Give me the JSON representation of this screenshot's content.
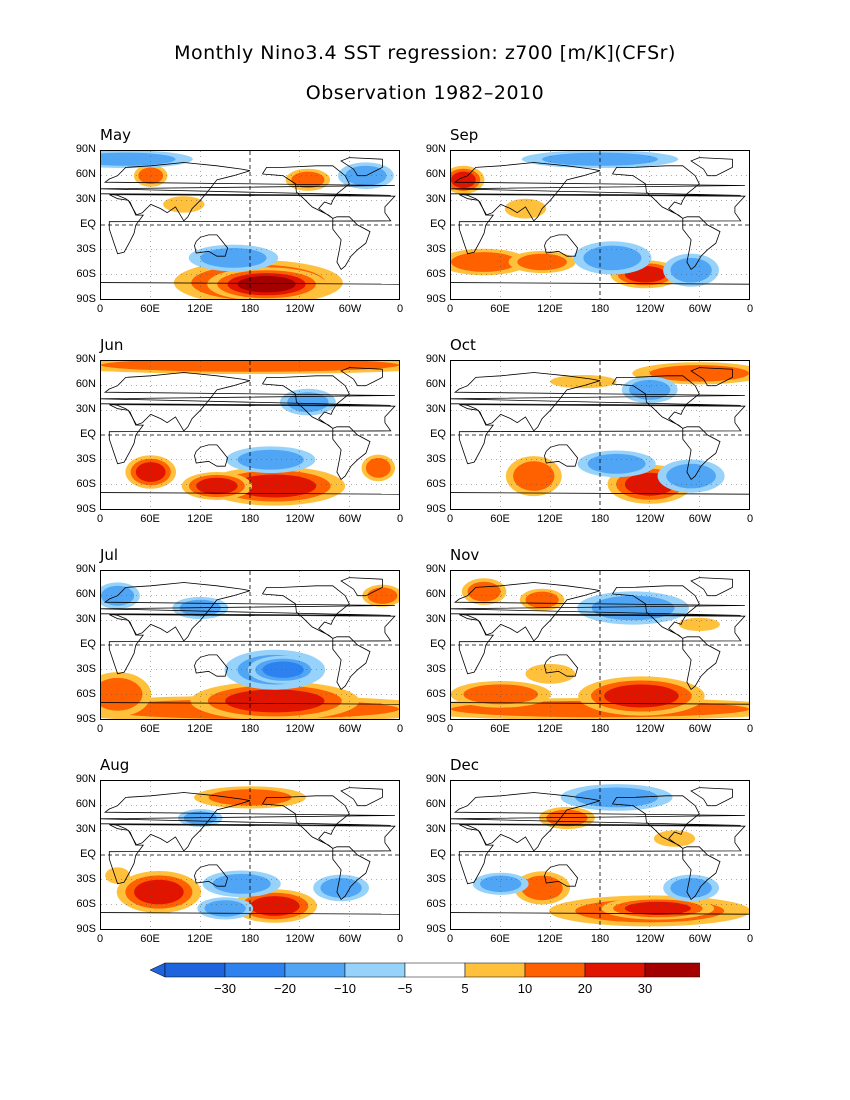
{
  "title": "Monthly Nino3.4 SST regression: z700 [m/K](CFSr)",
  "subtitle": "Observation 1982–2010",
  "lat_labels": [
    "90N",
    "60N",
    "30N",
    "EQ",
    "30S",
    "60S",
    "90S"
  ],
  "lon_labels": [
    "0",
    "60E",
    "120E",
    "180",
    "120W",
    "60W",
    "0"
  ],
  "panels": [
    {
      "month": "May",
      "blobs": [
        {
          "lon": 190,
          "lat": -70,
          "rx": 60,
          "ry": 16,
          "level": 20
        },
        {
          "lon": 200,
          "lat": -72,
          "rx": 35,
          "ry": 10,
          "level": 30
        },
        {
          "lon": 160,
          "lat": -40,
          "rx": 40,
          "ry": 12,
          "level": -10
        },
        {
          "lon": 60,
          "lat": 60,
          "rx": 15,
          "ry": 10,
          "level": 10
        },
        {
          "lon": 250,
          "lat": 55,
          "rx": 20,
          "ry": 10,
          "level": 10
        },
        {
          "lon": 100,
          "lat": 25,
          "rx": 25,
          "ry": 10,
          "level": 5
        },
        {
          "lon": 320,
          "lat": 60,
          "rx": 25,
          "ry": 12,
          "level": -10
        },
        {
          "lon": 30,
          "lat": 80,
          "rx": 60,
          "ry": 8,
          "level": -10
        }
      ]
    },
    {
      "month": "Sep",
      "blobs": [
        {
          "lon": 40,
          "lat": -45,
          "rx": 40,
          "ry": 12,
          "level": 10
        },
        {
          "lon": 110,
          "lat": -45,
          "rx": 30,
          "ry": 10,
          "level": 10
        },
        {
          "lon": 235,
          "lat": -60,
          "rx": 25,
          "ry": 10,
          "level": 20
        },
        {
          "lon": 195,
          "lat": -40,
          "rx": 35,
          "ry": 15,
          "level": -10
        },
        {
          "lon": 290,
          "lat": -55,
          "rx": 25,
          "ry": 15,
          "level": -10
        },
        {
          "lon": 15,
          "lat": 55,
          "rx": 15,
          "ry": 10,
          "level": 20
        },
        {
          "lon": 180,
          "lat": 80,
          "rx": 70,
          "ry": 8,
          "level": -10
        },
        {
          "lon": 90,
          "lat": 20,
          "rx": 25,
          "ry": 12,
          "level": 5
        }
      ]
    },
    {
      "month": "Jun",
      "blobs": [
        {
          "lon": 180,
          "lat": 85,
          "rx": 180,
          "ry": 8,
          "level": 10
        },
        {
          "lon": 210,
          "lat": -62,
          "rx": 50,
          "ry": 14,
          "level": 20
        },
        {
          "lon": 140,
          "lat": -62,
          "rx": 25,
          "ry": 10,
          "level": 20
        },
        {
          "lon": 60,
          "lat": -45,
          "rx": 18,
          "ry": 12,
          "level": 20
        },
        {
          "lon": 205,
          "lat": -30,
          "rx": 40,
          "ry": 12,
          "level": -10
        },
        {
          "lon": 335,
          "lat": -40,
          "rx": 15,
          "ry": 12,
          "level": 10
        },
        {
          "lon": 250,
          "lat": 40,
          "rx": 25,
          "ry": 12,
          "level": -10
        }
      ]
    },
    {
      "month": "Oct",
      "blobs": [
        {
          "lon": 240,
          "lat": -60,
          "rx": 30,
          "ry": 14,
          "level": 20
        },
        {
          "lon": 100,
          "lat": -50,
          "rx": 25,
          "ry": 18,
          "level": 10
        },
        {
          "lon": 200,
          "lat": -35,
          "rx": 35,
          "ry": 12,
          "level": -10
        },
        {
          "lon": 290,
          "lat": -50,
          "rx": 30,
          "ry": 15,
          "level": -10
        },
        {
          "lon": 300,
          "lat": 75,
          "rx": 60,
          "ry": 10,
          "level": 10
        },
        {
          "lon": 160,
          "lat": 65,
          "rx": 40,
          "ry": 8,
          "level": 5
        },
        {
          "lon": 240,
          "lat": 55,
          "rx": 25,
          "ry": 12,
          "level": -10
        }
      ]
    },
    {
      "month": "Jul",
      "blobs": [
        {
          "lon": 180,
          "lat": -78,
          "rx": 180,
          "ry": 12,
          "level": 10
        },
        {
          "lon": 210,
          "lat": -68,
          "rx": 60,
          "ry": 14,
          "level": 20
        },
        {
          "lon": 20,
          "lat": -60,
          "rx": 30,
          "ry": 20,
          "level": 10
        },
        {
          "lon": 210,
          "lat": -30,
          "rx": 45,
          "ry": 18,
          "level": -10
        },
        {
          "lon": 220,
          "lat": -30,
          "rx": 25,
          "ry": 10,
          "level": -20
        },
        {
          "lon": 120,
          "lat": 45,
          "rx": 25,
          "ry": 10,
          "level": -10
        },
        {
          "lon": 20,
          "lat": 60,
          "rx": 20,
          "ry": 12,
          "level": -10
        },
        {
          "lon": 340,
          "lat": 60,
          "rx": 18,
          "ry": 10,
          "level": 10
        }
      ]
    },
    {
      "month": "Nov",
      "blobs": [
        {
          "lon": 180,
          "lat": -78,
          "rx": 180,
          "ry": 10,
          "level": 10
        },
        {
          "lon": 230,
          "lat": -62,
          "rx": 45,
          "ry": 14,
          "level": 20
        },
        {
          "lon": 60,
          "lat": -60,
          "rx": 45,
          "ry": 12,
          "level": 10
        },
        {
          "lon": 120,
          "lat": -35,
          "rx": 30,
          "ry": 12,
          "level": 5
        },
        {
          "lon": 220,
          "lat": 45,
          "rx": 50,
          "ry": 15,
          "level": -10
        },
        {
          "lon": 40,
          "lat": 65,
          "rx": 20,
          "ry": 12,
          "level": 10
        },
        {
          "lon": 110,
          "lat": 55,
          "rx": 20,
          "ry": 10,
          "level": 10
        },
        {
          "lon": 300,
          "lat": 25,
          "rx": 25,
          "ry": 8,
          "level": 5
        }
      ]
    },
    {
      "month": "Aug",
      "blobs": [
        {
          "lon": 70,
          "lat": -45,
          "rx": 30,
          "ry": 15,
          "level": 20
        },
        {
          "lon": 210,
          "lat": -62,
          "rx": 30,
          "ry": 12,
          "level": 20
        },
        {
          "lon": 170,
          "lat": -35,
          "rx": 35,
          "ry": 12,
          "level": -10
        },
        {
          "lon": 150,
          "lat": -65,
          "rx": 25,
          "ry": 10,
          "level": -10
        },
        {
          "lon": 290,
          "lat": -40,
          "rx": 25,
          "ry": 12,
          "level": -10
        },
        {
          "lon": 180,
          "lat": 70,
          "rx": 50,
          "ry": 10,
          "level": 10
        },
        {
          "lon": 120,
          "lat": 45,
          "rx": 20,
          "ry": 8,
          "level": -10
        },
        {
          "lon": 20,
          "lat": -25,
          "rx": 15,
          "ry": 10,
          "level": 5
        }
      ]
    },
    {
      "month": "Dec",
      "blobs": [
        {
          "lon": 240,
          "lat": -68,
          "rx": 90,
          "ry": 14,
          "level": 10
        },
        {
          "lon": 250,
          "lat": -65,
          "rx": 40,
          "ry": 8,
          "level": 20
        },
        {
          "lon": 110,
          "lat": -40,
          "rx": 25,
          "ry": 15,
          "level": 10
        },
        {
          "lon": 140,
          "lat": 45,
          "rx": 25,
          "ry": 10,
          "level": 10
        },
        {
          "lon": 200,
          "lat": 70,
          "rx": 50,
          "ry": 12,
          "level": -10
        },
        {
          "lon": 290,
          "lat": -40,
          "rx": 25,
          "ry": 12,
          "level": -10
        },
        {
          "lon": 60,
          "lat": -35,
          "rx": 25,
          "ry": 10,
          "level": -10
        },
        {
          "lon": 270,
          "lat": 20,
          "rx": 25,
          "ry": 10,
          "level": 5
        }
      ]
    }
  ],
  "colorbar": {
    "labels": [
      "-30",
      "-20",
      "-10",
      "-5",
      "5",
      "10",
      "20",
      "30"
    ],
    "colors": [
      "#1e64dc",
      "#2d82f0",
      "#50a5f5",
      "#96d2fa",
      "#ffffff",
      "#ffc03c",
      "#ff6000",
      "#e11400",
      "#a50000"
    ]
  },
  "level_colors": {
    "-30": "#1e64dc",
    "-20": "#2d82f0",
    "-10": "#50a5f5",
    "-5": "#96d2fa",
    "5": "#ffc03c",
    "10": "#ff6000",
    "20": "#e11400",
    "30": "#a50000"
  }
}
